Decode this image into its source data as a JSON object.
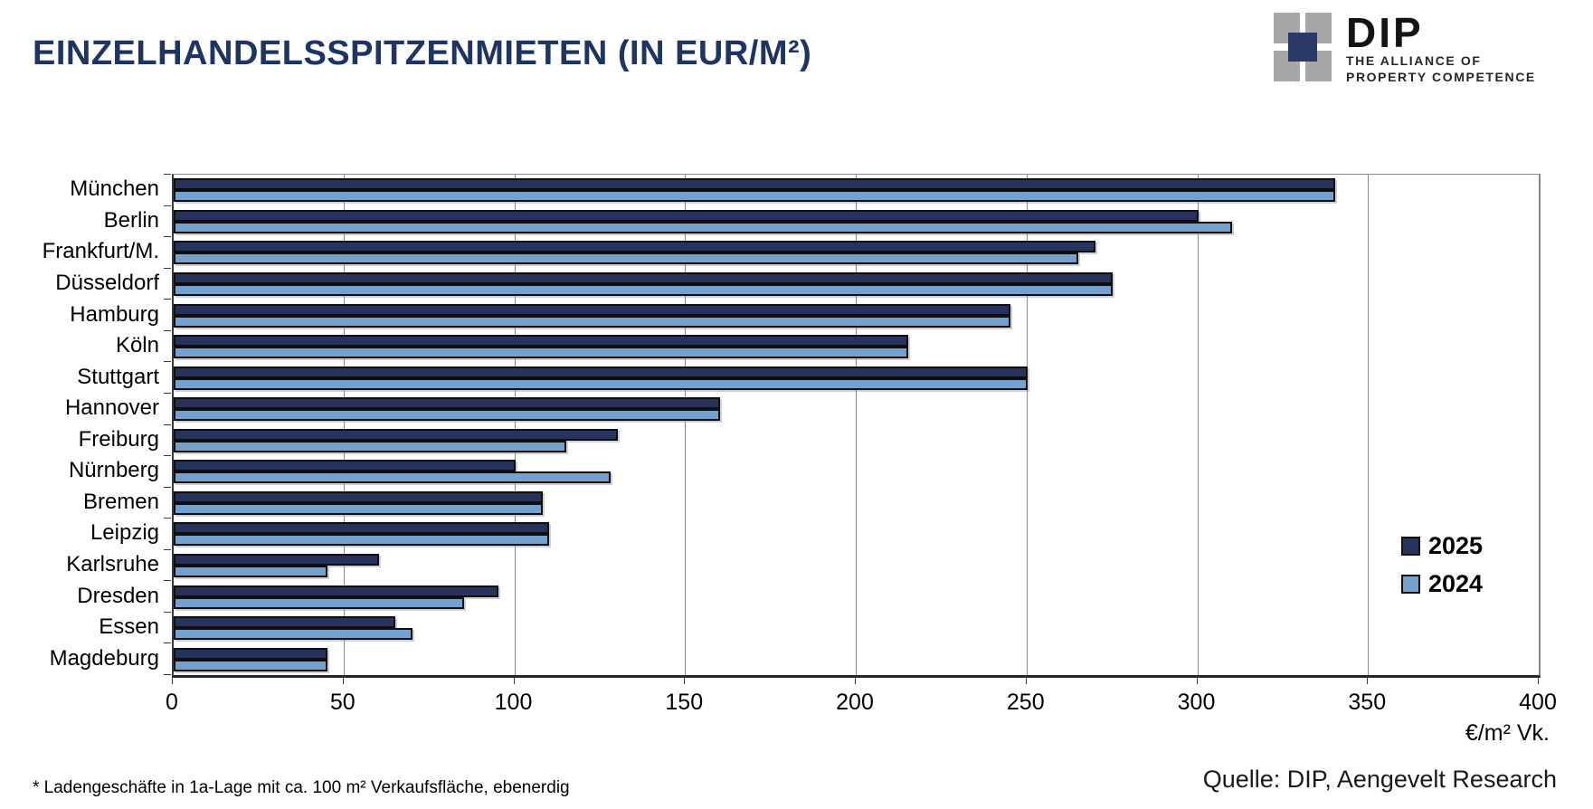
{
  "header": {
    "title": "EINZELHANDELSSPITZENMIETEN (IN EUR/M²)",
    "logo": {
      "name": "DIP",
      "tagline_line1": "THE ALLIANCE OF",
      "tagline_line2": "PROPERTY COMPETENCE"
    }
  },
  "chart_data": {
    "type": "bar",
    "orientation": "horizontal",
    "title": "EINZELHANDELSSPITZENMIETEN (IN EUR/M²)",
    "categories": [
      "München",
      "Berlin",
      "Frankfurt/M.",
      "Düsseldorf",
      "Hamburg",
      "Köln",
      "Stuttgart",
      "Hannover",
      "Freiburg",
      "Nürnberg",
      "Bremen",
      "Leipzig",
      "Karlsruhe",
      "Dresden",
      "Essen",
      "Magdeburg"
    ],
    "series": [
      {
        "name": "2025",
        "color": "#27335c",
        "values": [
          340,
          300,
          270,
          275,
          245,
          215,
          250,
          160,
          130,
          100,
          108,
          110,
          60,
          95,
          65,
          45
        ]
      },
      {
        "name": "2024",
        "color": "#74a1ce",
        "values": [
          340,
          310,
          265,
          275,
          245,
          215,
          250,
          160,
          115,
          128,
          108,
          110,
          45,
          85,
          70,
          45
        ]
      }
    ],
    "xlabel": "€/m² Vk.",
    "xlim": [
      0,
      400
    ],
    "xticks": [
      0,
      50,
      100,
      150,
      200,
      250,
      300,
      350,
      400
    ],
    "grid": true,
    "legend_position": "right-inside"
  },
  "footer": {
    "footnote": "* Ladengeschäfte in 1a-Lage mit ca. 100 m² Verkaufsfläche, ebenerdig",
    "source": "Quelle: DIP, Aengevelt Research"
  }
}
